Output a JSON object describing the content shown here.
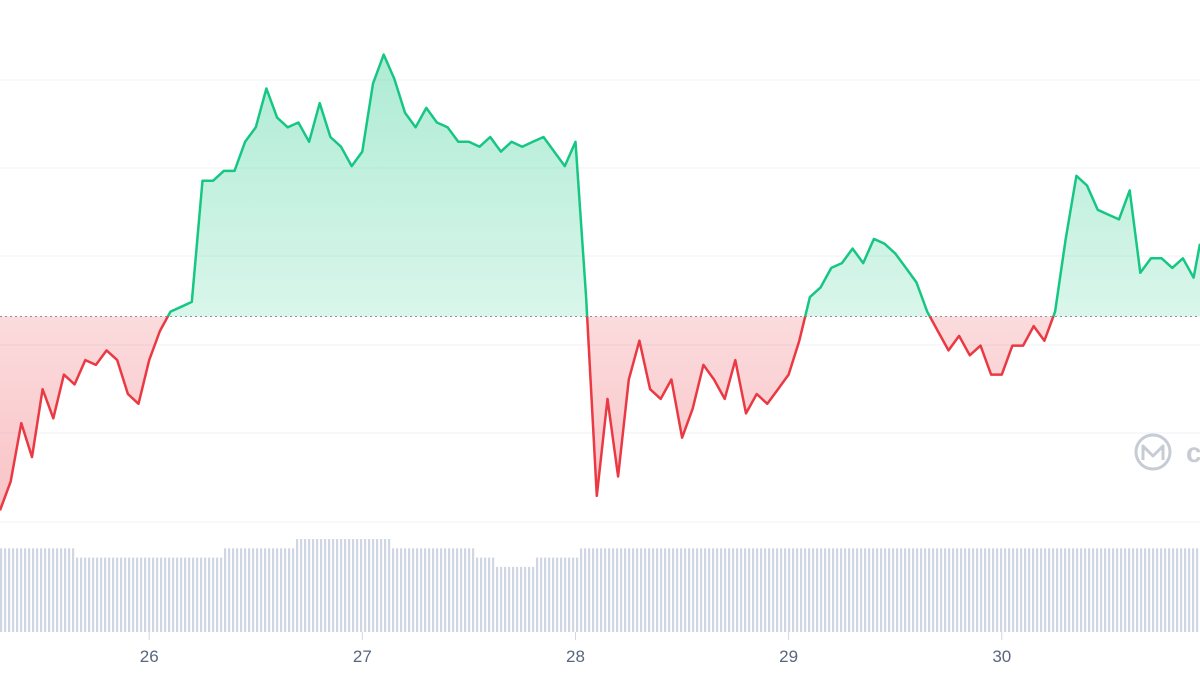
{
  "chart_data": {
    "type": "line",
    "title": "",
    "xlabel": "",
    "ylabel": "",
    "x_ticks": [
      "26",
      "27",
      "28",
      "29",
      "30"
    ],
    "x_range": [
      25.3,
      30.93
    ],
    "y_range": [
      0,
      100
    ],
    "baseline": 43.0,
    "grid": true,
    "watermark_text": "c",
    "colors": {
      "above": "#16c784",
      "below": "#ea3943",
      "volume": "#cfd6e4",
      "grid": "#eff2f5",
      "tick_text": "#58667e",
      "baseline": "#8a919e",
      "watermark": "#c6cbd4"
    },
    "series": [
      {
        "x": [
          25.3,
          25.35,
          25.4,
          25.45,
          25.5,
          25.55,
          25.6,
          25.65,
          25.7,
          25.75,
          25.8,
          25.85,
          25.9,
          25.95,
          26.0,
          26.05,
          26.1,
          26.15,
          26.2,
          26.25,
          26.3,
          26.35,
          26.4,
          26.45,
          26.5,
          26.55,
          26.6,
          26.65,
          26.7,
          26.75,
          26.8,
          26.85,
          26.9,
          26.95,
          27.0,
          27.05,
          27.1,
          27.15,
          27.2,
          27.25,
          27.3,
          27.35,
          27.4,
          27.45,
          27.5,
          27.55,
          27.6,
          27.65,
          27.7,
          27.75,
          27.8,
          27.85,
          27.9,
          27.95,
          28.0,
          28.05,
          28.1,
          28.15,
          28.2,
          28.25,
          28.3,
          28.35,
          28.4,
          28.45,
          28.5,
          28.55,
          28.6,
          28.65,
          28.7,
          28.75,
          28.8,
          28.85,
          28.9,
          28.95,
          29.0,
          29.05,
          29.1,
          29.15,
          29.2,
          29.25,
          29.3,
          29.35,
          29.4,
          29.45,
          29.5,
          29.55,
          29.6,
          29.65,
          29.7,
          29.75,
          29.8,
          29.85,
          29.9,
          29.95,
          30.0,
          30.05,
          30.1,
          30.15,
          30.2,
          30.25,
          30.3,
          30.35,
          30.4,
          30.45,
          30.5,
          30.55,
          30.6,
          30.65,
          30.7,
          30.75,
          30.8,
          30.85,
          30.9,
          30.93
        ],
        "y": [
          3,
          9,
          21,
          14,
          28,
          22,
          31,
          29,
          34,
          33,
          36,
          34,
          27,
          25,
          34,
          40,
          44,
          45,
          46,
          71,
          71,
          73,
          73,
          79,
          82,
          90,
          84,
          82,
          83,
          79,
          87,
          80,
          78,
          74,
          77,
          91,
          97,
          92,
          85,
          82,
          86,
          83,
          82,
          79,
          79,
          78,
          80,
          77,
          79,
          78,
          79,
          80,
          77,
          74,
          79,
          47,
          6,
          26,
          10,
          30,
          38,
          28,
          26,
          30,
          18,
          24,
          33,
          30,
          26,
          34,
          23,
          27,
          25,
          28,
          31,
          38,
          47,
          49,
          53,
          54,
          57,
          54,
          59,
          58,
          56,
          53,
          50,
          44,
          40,
          36,
          39,
          35,
          37,
          31,
          31,
          37,
          37,
          41,
          38,
          44,
          59,
          72,
          70,
          65,
          64,
          63,
          69,
          52,
          55,
          55,
          53,
          55,
          51,
          58
        ]
      }
    ],
    "volume": [
      9,
      9,
      9,
      9,
      9,
      9,
      9,
      8,
      8,
      8,
      8,
      8,
      8,
      8,
      8,
      8,
      8,
      8,
      8,
      8,
      8,
      9,
      9,
      9,
      9,
      9,
      9,
      9,
      10,
      10,
      10,
      10,
      10,
      10,
      10,
      10,
      10,
      9,
      9,
      9,
      9,
      9,
      9,
      9,
      9,
      8,
      8,
      7,
      7,
      7,
      7,
      8,
      8,
      8,
      8,
      9,
      9,
      9,
      9,
      9,
      9,
      9,
      9,
      9,
      9,
      9,
      9,
      9,
      9,
      9,
      9,
      9,
      9,
      9,
      9,
      9,
      9,
      9,
      9,
      9,
      9,
      9,
      9,
      9,
      9,
      9,
      9,
      9,
      9,
      9,
      9,
      9,
      9,
      9,
      9,
      9,
      9,
      9,
      9,
      9,
      9,
      9,
      9,
      9,
      9,
      9,
      9,
      9,
      9,
      9,
      9,
      9,
      9,
      9
    ]
  }
}
